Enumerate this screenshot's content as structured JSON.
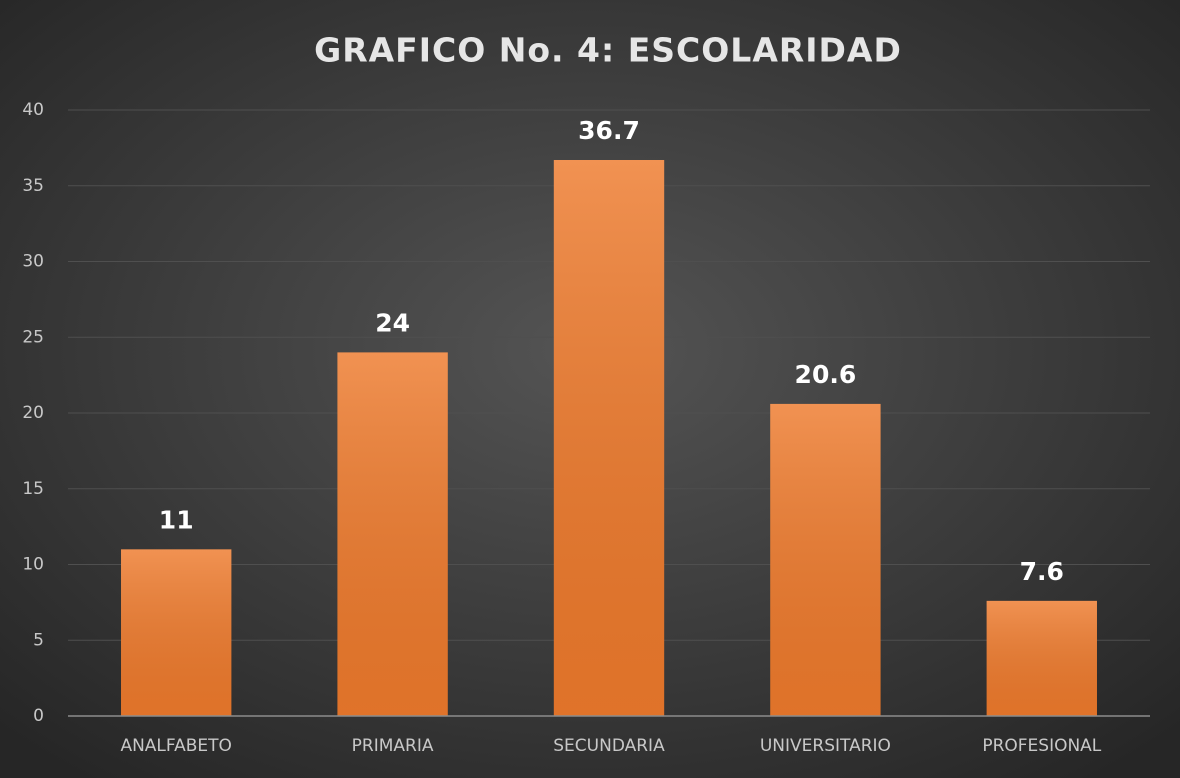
{
  "chart_data": {
    "type": "bar",
    "title": "GRAFICO No. 4: ESCOLARIDAD",
    "categories": [
      "ANALFABETO",
      "PRIMARIA",
      "SECUNDARIA",
      "UNIVERSITARIO",
      "PROFESIONAL"
    ],
    "values": [
      11,
      24,
      36.7,
      20.6,
      7.6
    ],
    "color": "#ee7a2c",
    "ylim": [
      0,
      40
    ],
    "yticks": [
      0,
      5,
      10,
      15,
      20,
      25,
      30,
      35,
      40
    ],
    "grid": true
  }
}
